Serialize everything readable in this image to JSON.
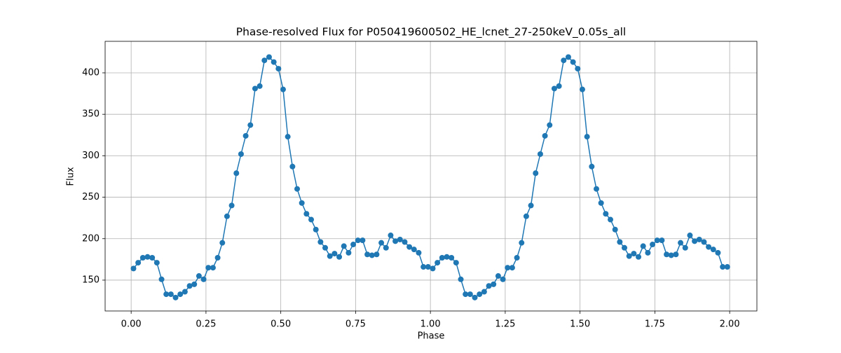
{
  "chart_data": {
    "type": "line",
    "title": "Phase-resolved Flux for P050419600502_HE_lcnet_27-250keV_0.05s_all",
    "x_label": "Phase",
    "y_label": "Flux",
    "x": [
      0.0078,
      0.0234,
      0.0391,
      0.0547,
      0.0703,
      0.0859,
      0.1016,
      0.1172,
      0.1328,
      0.1484,
      0.1641,
      0.1797,
      0.1953,
      0.2109,
      0.2266,
      0.2422,
      0.2578,
      0.2734,
      0.2891,
      0.3047,
      0.3203,
      0.3359,
      0.3516,
      0.3672,
      0.3828,
      0.3984,
      0.4141,
      0.4297,
      0.4453,
      0.4609,
      0.4766,
      0.4922,
      0.5078,
      0.5234,
      0.5391,
      0.5547,
      0.5703,
      0.5859,
      0.6016,
      0.6172,
      0.6328,
      0.6484,
      0.6641,
      0.6797,
      0.6953,
      0.7109,
      0.7266,
      0.7422,
      0.7578,
      0.7734,
      0.7891,
      0.8047,
      0.8203,
      0.8359,
      0.8516,
      0.8672,
      0.8828,
      0.8984,
      0.9141,
      0.9297,
      0.9453,
      0.9609,
      0.9766,
      0.9922,
      1.0078,
      1.0234,
      1.0391,
      1.0547,
      1.0703,
      1.0859,
      1.1016,
      1.1172,
      1.1328,
      1.1484,
      1.1641,
      1.1797,
      1.1953,
      1.2109,
      1.2266,
      1.2422,
      1.2578,
      1.2734,
      1.2891,
      1.3047,
      1.3203,
      1.3359,
      1.3516,
      1.3672,
      1.3828,
      1.3984,
      1.4141,
      1.4297,
      1.4453,
      1.4609,
      1.4766,
      1.4922,
      1.5078,
      1.5234,
      1.5391,
      1.5547,
      1.5703,
      1.5859,
      1.6016,
      1.6172,
      1.6328,
      1.6484,
      1.6641,
      1.6797,
      1.6953,
      1.7109,
      1.7266,
      1.7422,
      1.7578,
      1.7734,
      1.7891,
      1.8047,
      1.8203,
      1.8359,
      1.8516,
      1.8672,
      1.8828,
      1.8984,
      1.9141,
      1.9297,
      1.9453,
      1.9609,
      1.9766,
      1.9922
    ],
    "values": [
      164,
      171,
      177,
      178,
      177,
      171,
      151,
      133,
      133,
      129,
      133,
      136,
      143,
      145,
      155,
      151,
      165,
      165,
      177,
      195,
      227,
      240,
      279,
      302,
      324,
      337,
      381,
      384,
      415,
      419,
      413,
      405,
      380,
      323,
      287,
      260,
      243,
      230,
      223,
      211,
      196,
      189,
      179,
      182,
      178,
      191,
      183,
      193,
      198,
      198,
      181,
      180,
      181,
      195,
      189,
      204,
      197,
      199,
      196,
      190,
      187,
      183,
      166,
      166,
      164,
      171,
      177,
      178,
      177,
      171,
      151,
      133,
      133,
      129,
      133,
      136,
      143,
      145,
      155,
      151,
      165,
      165,
      177,
      195,
      227,
      240,
      279,
      302,
      324,
      337,
      381,
      384,
      415,
      419,
      413,
      405,
      380,
      323,
      287,
      260,
      243,
      230,
      223,
      211,
      196,
      189,
      179,
      182,
      178,
      191,
      183,
      193,
      198,
      198,
      181,
      180,
      181,
      195,
      189,
      204,
      197,
      199,
      196,
      190,
      187,
      183,
      166,
      166
    ],
    "color": "#1f77b4",
    "xlim": [
      -0.087,
      2.091
    ],
    "xticks": [
      {
        "value": 0,
        "label": "0.00"
      },
      {
        "value": 0.25,
        "label": "0.25"
      },
      {
        "value": 0.5,
        "label": "0.50"
      },
      {
        "value": 0.75,
        "label": "0.75"
      },
      {
        "value": 1,
        "label": "1.00"
      },
      {
        "value": 1.25,
        "label": "1.25"
      },
      {
        "value": 1.5,
        "label": "1.50"
      },
      {
        "value": 1.75,
        "label": "1.75"
      },
      {
        "value": 2,
        "label": "2.00"
      }
    ],
    "ylim": [
      112.8,
      438
    ],
    "yticks": [
      150,
      200,
      250,
      300,
      350,
      400
    ],
    "grid": true
  }
}
